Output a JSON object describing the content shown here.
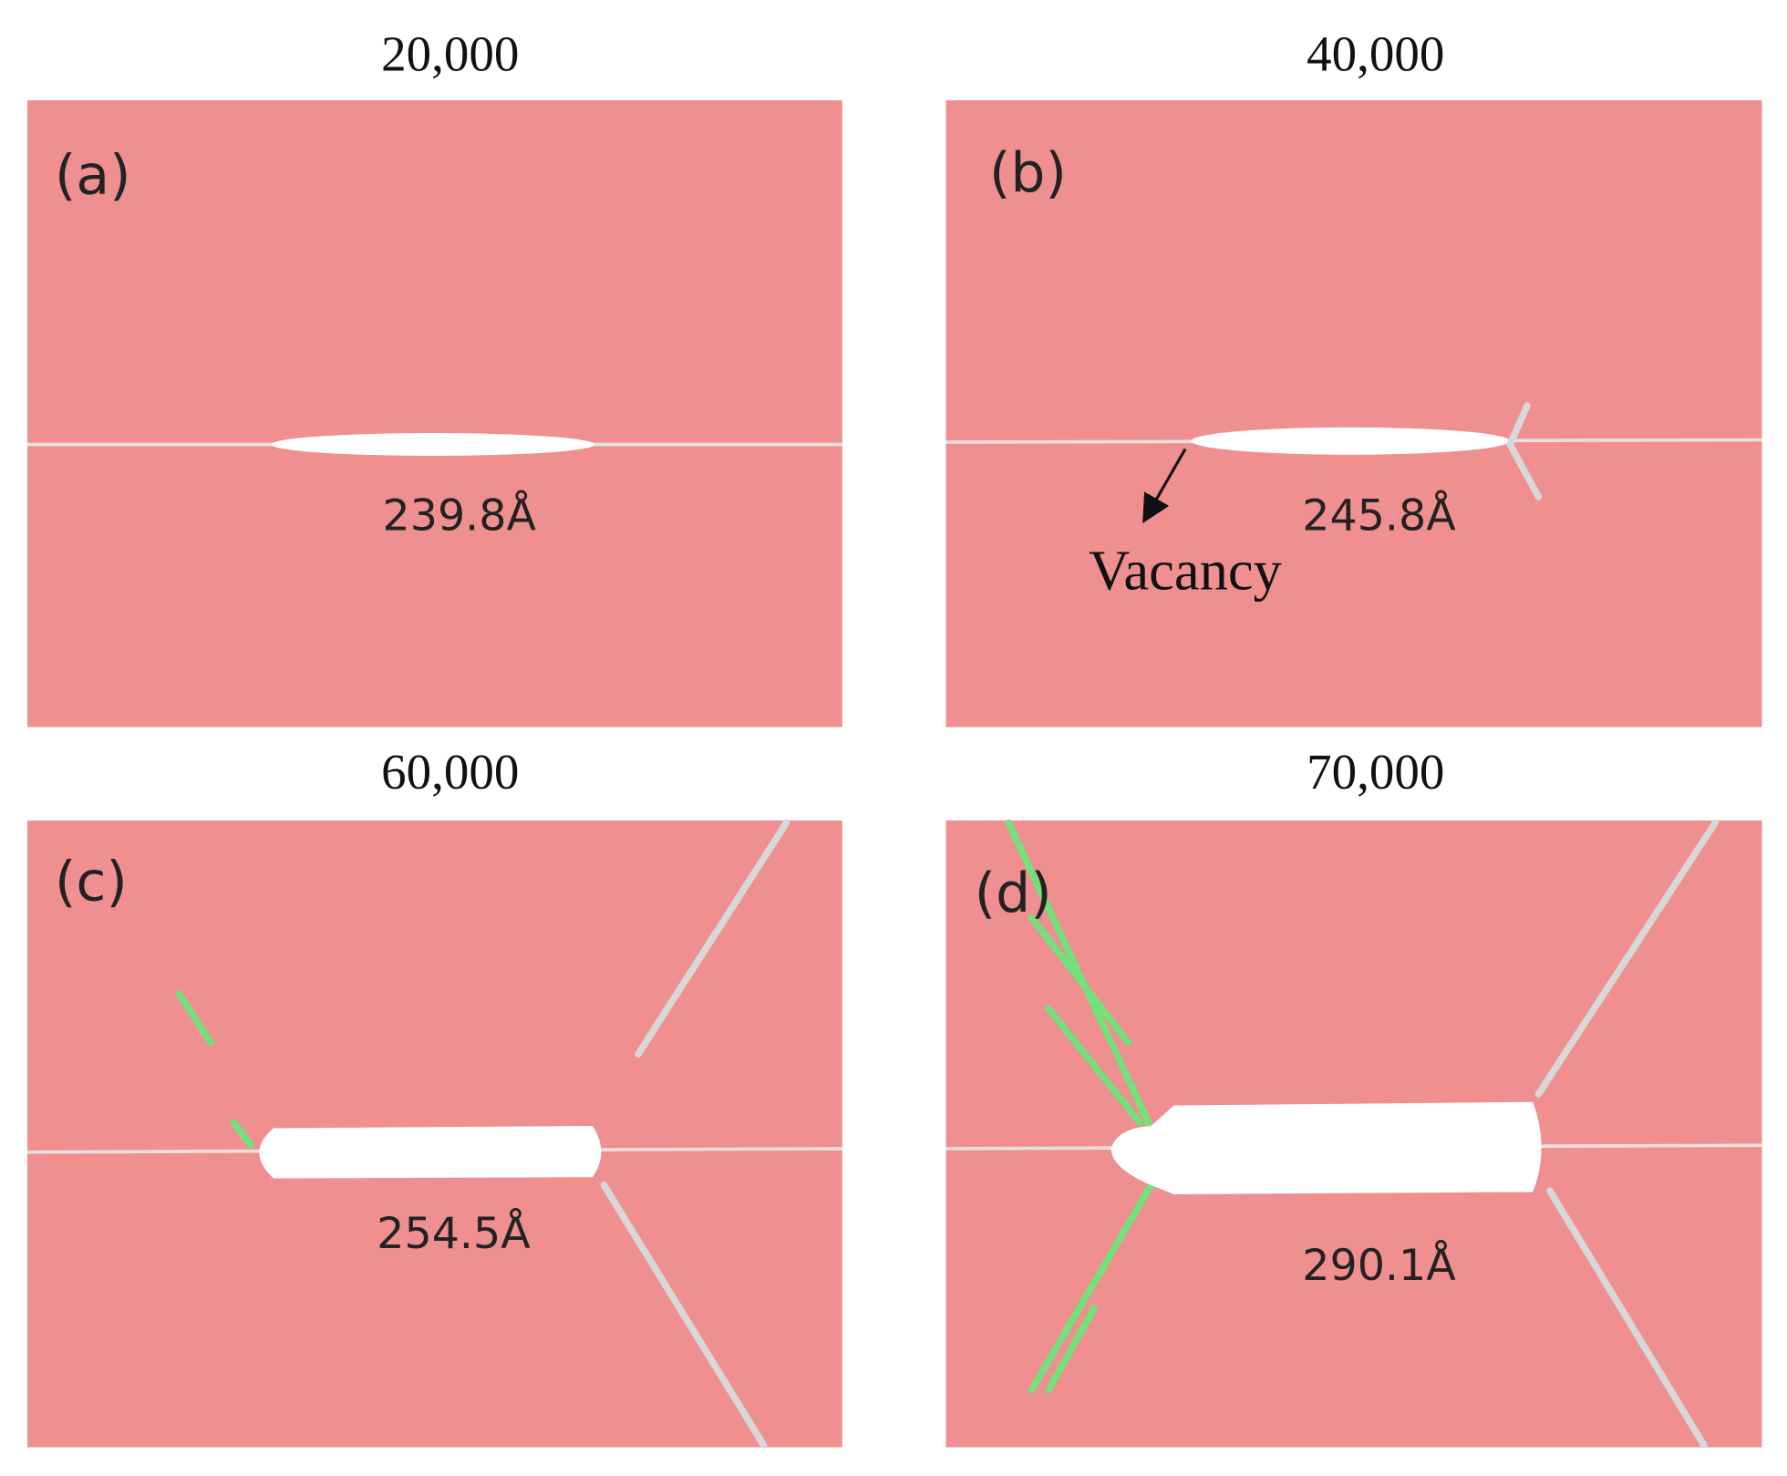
{
  "panels": [
    {
      "title": "20,000",
      "label": "(a)",
      "length": "239.8Å"
    },
    {
      "title": "40,000",
      "label": "(b)",
      "length": "245.8Å",
      "annotation": "Vacancy"
    },
    {
      "title": "60,000",
      "label": "(c)",
      "length": "254.5Å"
    },
    {
      "title": "70,000",
      "label": "(d)",
      "length": "290.1Å"
    }
  ]
}
